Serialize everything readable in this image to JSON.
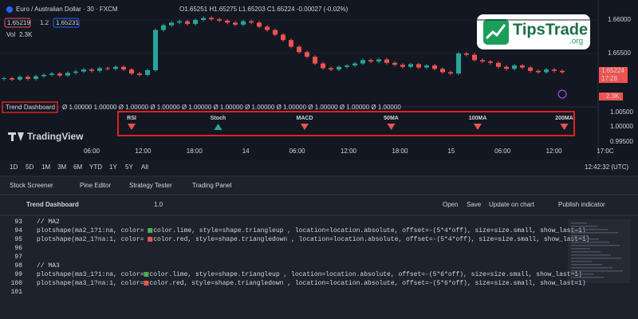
{
  "header": {
    "symbol": "Euro / Australian Dollar · 30 · FXCM",
    "ohlc": "O1.65251 H1.65275 L1.65203 C1.65224 -0.00027 (-0.02%)",
    "bid": "1.65219",
    "spread": "1.2",
    "ask": "1.65231",
    "vol_label": "Vol",
    "vol_value": "2.3K"
  },
  "logo": {
    "name": "TipsTrade",
    "domain": ".org"
  },
  "price_chart": {
    "type": "candlestick",
    "closes": [
      1.6513,
      1.6511,
      1.6515,
      1.6512,
      1.6516,
      1.6518,
      1.652,
      1.6517,
      1.6521,
      1.6523,
      1.6526,
      1.6524,
      1.6528,
      1.6527,
      1.653,
      1.6526,
      1.652,
      1.6518,
      1.6525,
      1.6585,
      1.6592,
      1.6596,
      1.6598,
      1.6594,
      1.66,
      1.6603,
      1.6601,
      1.6599,
      1.6596,
      1.6593,
      1.6598,
      1.6596,
      1.659,
      1.6585,
      1.6578,
      1.657,
      1.656,
      1.6552,
      1.6545,
      1.6535,
      1.6528,
      1.6526,
      1.653,
      1.6532,
      1.6535,
      1.654,
      1.6538,
      1.6541,
      1.6536,
      1.6533,
      1.653,
      1.6534,
      1.6529,
      1.6532,
      1.6527,
      1.6522,
      1.652,
      1.655,
      1.6548,
      1.654,
      1.6538,
      1.6536,
      1.653,
      1.6527,
      1.6532,
      1.6529,
      1.6524,
      1.6522,
      1.6526,
      1.6524,
      1.6522
    ],
    "up_color": "#26a69a",
    "down_color": "#ef5350",
    "ylim": [
      1.649,
      1.661
    ],
    "yticks": [
      {
        "value": 1.66,
        "label": "1.66000"
      },
      {
        "value": 1.655,
        "label": "1.65500"
      }
    ],
    "price_tag": "1.65224",
    "time_tag": "17:28",
    "volume_tag": "2.3K"
  },
  "indicator": {
    "name": "Trend Dashboard",
    "values": "Ø 1.00000 1.00000 Ø 1.00000 Ø 1.00000 Ø 1.00000 Ø 1.00000 Ø 1.00000 Ø 1.00000 Ø 1.00000 Ø 1.00000 Ø 1.00000",
    "axis": [
      "1.00500",
      "1.00000",
      "0.99500"
    ],
    "signals": [
      {
        "label": "RSI",
        "direction": "down"
      },
      {
        "label": "Stoch",
        "direction": "up"
      },
      {
        "label": "MACD",
        "direction": "down"
      },
      {
        "label": "50MA",
        "direction": "down"
      },
      {
        "label": "100MA",
        "direction": "down"
      },
      {
        "label": "200MA",
        "direction": "down"
      }
    ]
  },
  "brand": "TradingView",
  "time_axis": [
    "06:00",
    "12:00",
    "18:00",
    "14",
    "06:00",
    "12:00",
    "18:00",
    "15",
    "06:00",
    "12:00",
    "17:0C"
  ],
  "ranges": [
    "1D",
    "5D",
    "1M",
    "3M",
    "6M",
    "YTD",
    "1Y",
    "5Y",
    "All"
  ],
  "clock": "12:42:32 (UTC)",
  "tabs": [
    {
      "label": "Stock Screener",
      "active": false
    },
    {
      "label": "Pine Editor",
      "active": true
    },
    {
      "label": "Strategy Tester",
      "active": false
    },
    {
      "label": "Trading Panel",
      "active": false
    }
  ],
  "editor": {
    "script": "Trend Dashboard",
    "version": "1.0",
    "actions": [
      "Open",
      "Save",
      "Update on chart"
    ],
    "publish": "Publish indicator",
    "lines": [
      {
        "number": "93",
        "pre": "// MA2"
      },
      {
        "number": "94",
        "pre": "plotshape(ma2_1?1:na,  color=",
        "swatch": "#4caf50",
        "post": "color.lime, style=shape.triangleup , location=location.absolute, offset=-(5*4*off), size=size.small, show_last=1)"
      },
      {
        "number": "95",
        "pre": "plotshape(ma2_1?na:1,  color=",
        "swatch": "#ef5350",
        "post": "color.red, style=shape.triangledown , location=location.absolute, offset=-(5*4*off), size=size.small, show_last=1)"
      },
      {
        "number": "96"
      },
      {
        "number": "97"
      },
      {
        "number": "98",
        "pre": "// MA3"
      },
      {
        "number": "99",
        "pre": "plotshape(ma3_1?1:na, color=",
        "swatch": "#4caf50",
        "post": "color.lime, style=shape.triangleup , location=location.absolute, offset=-(5*6*off), size=size.small, show_last=1)"
      },
      {
        "number": "100",
        "pre": "plotshape(ma3_1?na:1, color=",
        "swatch": "#ef5350",
        "post": "color.red, style=shape.triangledown , location=location.absolute, offset=-(5*6*off), size=size.small, show_last=1)"
      },
      {
        "number": "101"
      }
    ]
  }
}
